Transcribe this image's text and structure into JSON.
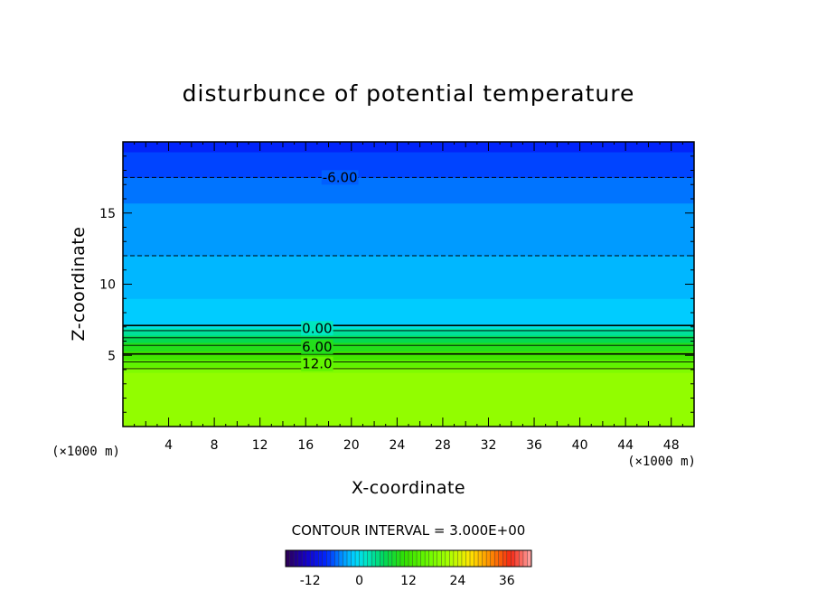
{
  "chart_data": {
    "type": "heatmap",
    "title": "disturbunce of potential temperature",
    "xlabel": "X-coordinate",
    "ylabel": "Z-coordinate",
    "x_unit": "(×1000 m)",
    "y_unit": "(×1000 m)",
    "xlim": [
      0,
      50
    ],
    "ylim": [
      0,
      20
    ],
    "x_ticks": [
      4,
      8,
      12,
      16,
      20,
      24,
      28,
      32,
      36,
      40,
      44,
      48
    ],
    "y_ticks": [
      5,
      10,
      15
    ],
    "contour_interval_text": "CONTOUR INTERVAL = 3.000E+00",
    "contour_labels": [
      {
        "text": "-6.00",
        "x": 19,
        "z": 17.5
      },
      {
        "text": "0.00",
        "x": 17,
        "z": 6.9
      },
      {
        "text": "6.00",
        "x": 17,
        "z": 5.6
      },
      {
        "text": "12.0",
        "x": 17,
        "z": 4.4
      }
    ],
    "colorbar": {
      "ticks": [
        "-12",
        "0",
        "12",
        "24",
        "36"
      ],
      "range": [
        -18,
        42
      ]
    },
    "profile": [
      {
        "z": 0.0,
        "value": 20
      },
      {
        "z": 3.8,
        "value": 20
      },
      {
        "z": 4.2,
        "value": 17
      },
      {
        "z": 4.7,
        "value": 14
      },
      {
        "z": 5.3,
        "value": 11
      },
      {
        "z": 5.9,
        "value": 8
      },
      {
        "z": 6.4,
        "value": 5
      },
      {
        "z": 6.9,
        "value": 2
      },
      {
        "z": 7.2,
        "value": -1
      },
      {
        "z": 9.0,
        "value": -2
      },
      {
        "z": 12.0,
        "value": -3
      },
      {
        "z": 15.7,
        "value": -4.5
      },
      {
        "z": 17.5,
        "value": -6
      },
      {
        "z": 19.3,
        "value": -8
      },
      {
        "z": 20.0,
        "value": -9
      }
    ]
  }
}
